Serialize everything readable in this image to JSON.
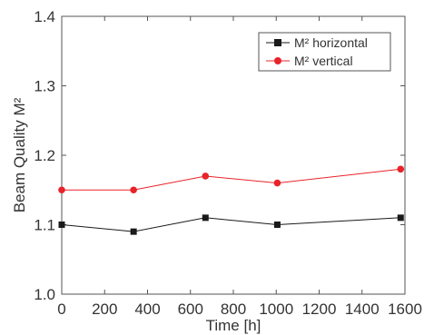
{
  "chart_data": {
    "type": "line",
    "xlabel": "Time [h]",
    "ylabel": "Beam Quality M²",
    "xlim": [
      0,
      1600
    ],
    "ylim": [
      1.0,
      1.4
    ],
    "x_ticks": [
      "0",
      "200",
      "400",
      "600",
      "800",
      "1000",
      "1200",
      "1400",
      "1600"
    ],
    "y_ticks": [
      "1.0",
      "1.1",
      "1.2",
      "1.3",
      "1.4"
    ],
    "grid": false,
    "legend_position": "top-right",
    "series": [
      {
        "name": "M² horizontal",
        "color": "#1a1a1a",
        "marker": "square",
        "x": [
          0,
          335,
          670,
          1005,
          1580
        ],
        "y": [
          1.1,
          1.09,
          1.11,
          1.1,
          1.11
        ]
      },
      {
        "name": "M² vertical",
        "color": "#e8232a",
        "marker": "circle",
        "x": [
          0,
          335,
          670,
          1005,
          1580
        ],
        "y": [
          1.15,
          1.15,
          1.17,
          1.16,
          1.18
        ]
      }
    ]
  }
}
